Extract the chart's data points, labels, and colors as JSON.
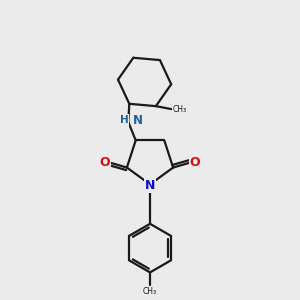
{
  "background_color": "#ebebeb",
  "bond_color": "#1a1a1a",
  "N_color": "#1010cc",
  "O_color": "#cc1010",
  "NH_color": "#2060a0",
  "lw": 1.6,
  "figsize": [
    3.0,
    3.0
  ],
  "dpi": 100,
  "xlim": [
    0,
    10
  ],
  "ylim": [
    0,
    10
  ]
}
